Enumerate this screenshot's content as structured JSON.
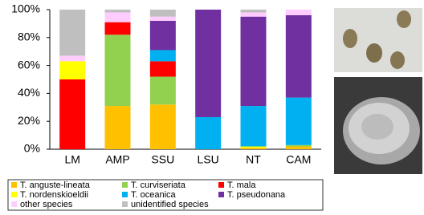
{
  "chart_data": {
    "type": "stacked_bar",
    "categories": [
      "LM",
      "AMP",
      "SSU",
      "LSU",
      "NT",
      "CAM"
    ],
    "series": [
      {
        "name": "T. anguste-lineata",
        "color": "#ffc000",
        "values": [
          0,
          31,
          32,
          0,
          1,
          2
        ]
      },
      {
        "name": "T. curviseriata",
        "color": "#92d050",
        "values": [
          0,
          51,
          20,
          0,
          0,
          1
        ]
      },
      {
        "name": "T. mala",
        "color": "#ff0000",
        "values": [
          50,
          9,
          11,
          0,
          0,
          0
        ]
      },
      {
        "name": "T. nordenskioeldii",
        "color": "#ffff00",
        "values": [
          13,
          0,
          0,
          0,
          1,
          0
        ]
      },
      {
        "name": "T. oceanica",
        "color": "#00b0f0",
        "values": [
          0,
          0,
          8,
          23,
          29,
          34
        ]
      },
      {
        "name": "T. pseudonana",
        "color": "#7030a0",
        "values": [
          0,
          0,
          21,
          77,
          64,
          59
        ]
      },
      {
        "name": "other species",
        "color": "#ffccff",
        "values": [
          4,
          7,
          3,
          0,
          3,
          4
        ]
      },
      {
        "name": "unidentified species",
        "color": "#bfbfbf",
        "values": [
          33,
          2,
          5,
          0,
          2,
          0
        ]
      }
    ],
    "ylim": [
      0,
      100
    ],
    "yticks": [
      {
        "value": 0,
        "label": "0%"
      },
      {
        "value": 20,
        "label": "20%"
      },
      {
        "value": 40,
        "label": "40%"
      },
      {
        "value": 60,
        "label": "60%"
      },
      {
        "value": 80,
        "label": "80%"
      },
      {
        "value": 100,
        "label": "100%"
      }
    ],
    "grid": false
  }
}
